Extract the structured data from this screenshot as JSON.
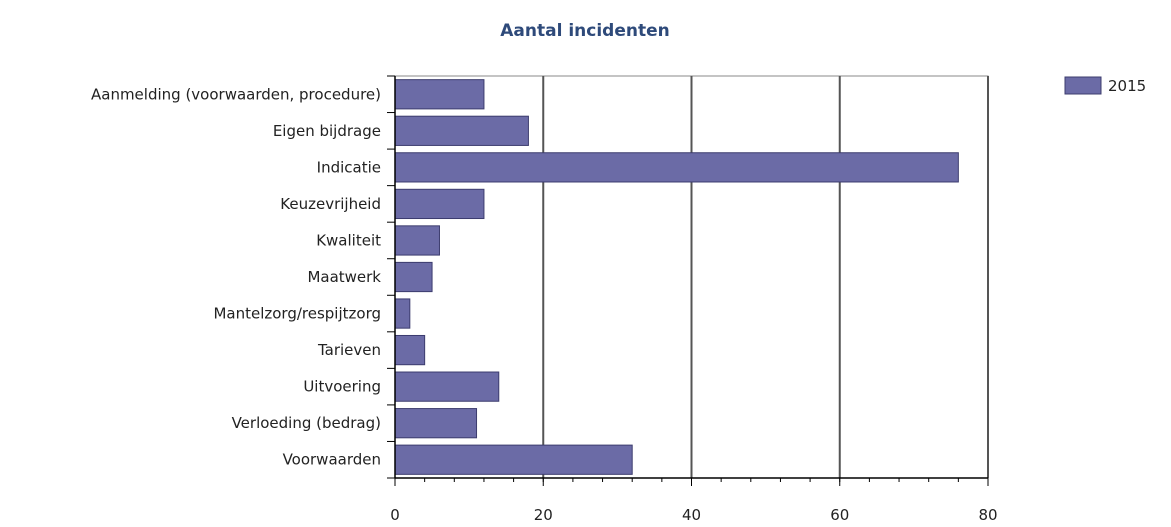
{
  "chart_data": {
    "type": "bar",
    "orientation": "horizontal",
    "title": "Aantal incidenten",
    "categories": [
      "Aanmelding (voorwaarden, procedure)",
      "Eigen bijdrage",
      "Indicatie",
      "Keuzevrijheid",
      "Kwaliteit",
      "Maatwerk",
      "Mantelzorg/respijtzorg",
      "Tarieven",
      "Uitvoering",
      "Verloeding (bedrag)",
      "Voorwaarden"
    ],
    "series": [
      {
        "name": "2015",
        "values": [
          12,
          18,
          76,
          12,
          6,
          5,
          2,
          4,
          14,
          11,
          32
        ]
      }
    ],
    "xlim": [
      0,
      80
    ],
    "xticks": [
      "0",
      "20",
      "40",
      "60",
      "80"
    ],
    "xlabel": "",
    "ylabel": "",
    "grid": true,
    "legend": "top-right",
    "colors": {
      "bar": "#6b6ba6",
      "bar_edge": "#3c3c6e",
      "grid": "#555555",
      "axis": "#000000"
    }
  }
}
